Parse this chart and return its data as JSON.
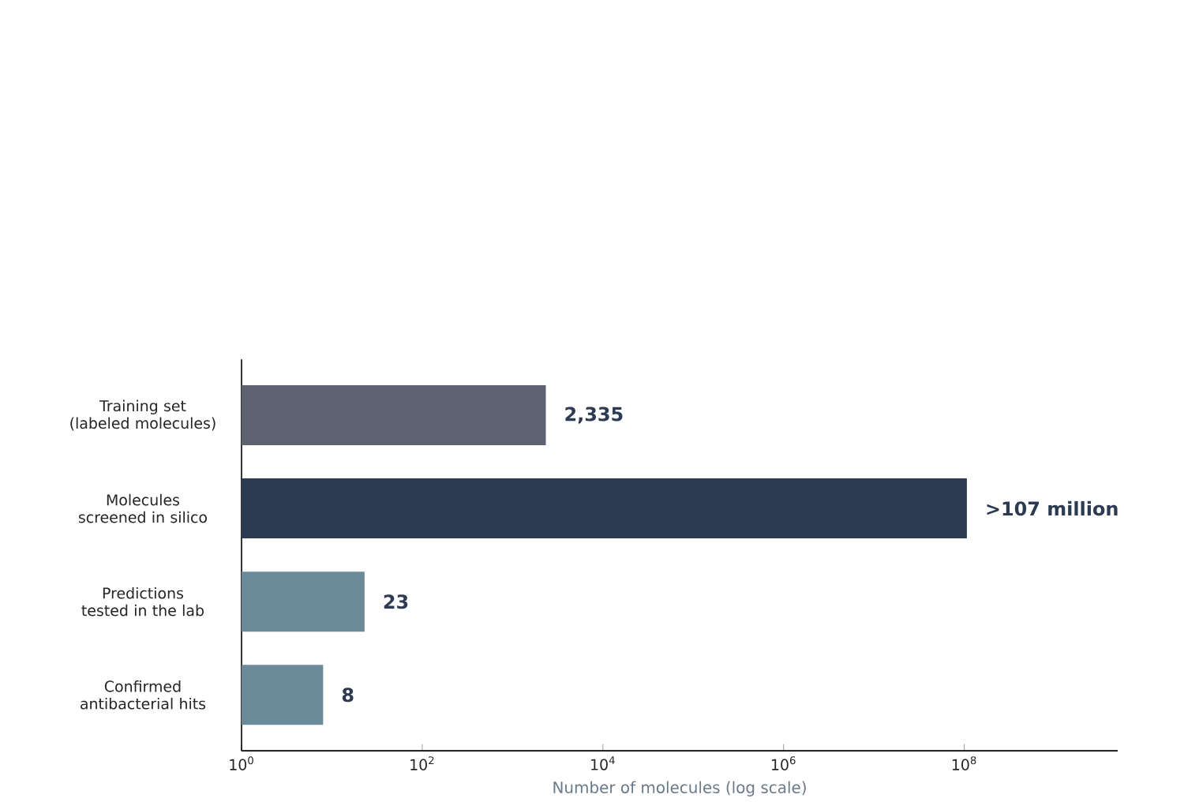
{
  "chart_data": {
    "type": "bar",
    "orientation": "horizontal",
    "log": "x",
    "categories": [
      "Training set (labeled molecules)",
      "Molecules screened in silico",
      "Predictions tested in the lab",
      "Confirmed antibacterial hits"
    ],
    "values": [
      2335,
      107000000,
      23,
      8
    ],
    "value_labels": [
      "2,335",
      ">107 million",
      "23",
      "8"
    ],
    "colors": [
      "#5c6270",
      "#2c3b52",
      "#6b8a9a",
      "#6b8a9a"
    ],
    "xlabel": "Number of molecules (log scale)",
    "xlim": [
      1,
      5000000000
    ],
    "xticks": [
      {
        "value": 1,
        "label": "10$^{0}$"
      },
      {
        "value": 100,
        "label": "10$^{2}$"
      },
      {
        "value": 10000,
        "label": "10$^{4}$"
      },
      {
        "value": 1000000,
        "label": "10$^{6}$"
      },
      {
        "value": 100000000,
        "label": "10$^{8}$"
      }
    ]
  }
}
